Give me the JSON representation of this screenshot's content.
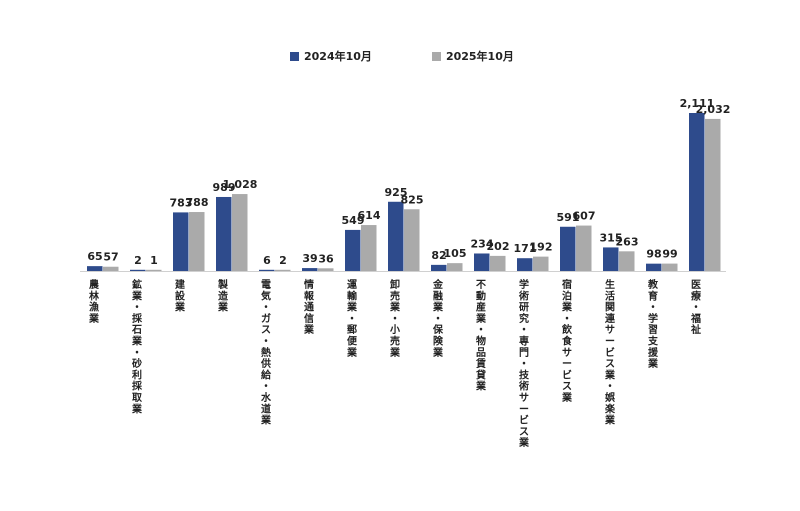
{
  "chart_data": {
    "type": "bar",
    "title": "",
    "xlabel": "",
    "ylabel": "",
    "ylim": [
      0,
      2111
    ],
    "colors": {
      "s2024": "#2E4B8C",
      "s2025": "#AAAAAA"
    },
    "categories": [
      "農林漁業",
      "鉱業・採石業・砂利採取業",
      "建設業",
      "製造業",
      "電気・ガス・熱供給・水道業",
      "情報通信業",
      "運輸業・郵便業",
      "卸売業・小売業",
      "金融業・保険業",
      "不動産業・物品賃貸業",
      "学術研究・専門・技術サービス業",
      "宿泊業・飲食サービス業",
      "生活関連サービス業・娯楽業",
      "教育・学習支援業",
      "医療・福祉"
    ],
    "series": [
      {
        "name": "2024年10月",
        "values": [
          65,
          2,
          783,
          989,
          6,
          39,
          549,
          925,
          82,
          234,
          171,
          591,
          315,
          98,
          2111
        ],
        "labels": [
          "65",
          "2",
          "783",
          "989",
          "6",
          "39",
          "549",
          "925",
          "82",
          "234",
          "171",
          "591",
          "315",
          "98",
          "2,111"
        ]
      },
      {
        "name": "2025年10月",
        "values": [
          57,
          1,
          788,
          1028,
          2,
          36,
          614,
          825,
          105,
          202,
          192,
          607,
          263,
          99,
          2032
        ],
        "labels": [
          "57",
          "1",
          "788",
          "1,028",
          "2",
          "36",
          "614",
          "825",
          "105",
          "202",
          "192",
          "607",
          "263",
          "99",
          "2,032"
        ]
      }
    ],
    "legend": {
      "position": "top-center"
    }
  }
}
